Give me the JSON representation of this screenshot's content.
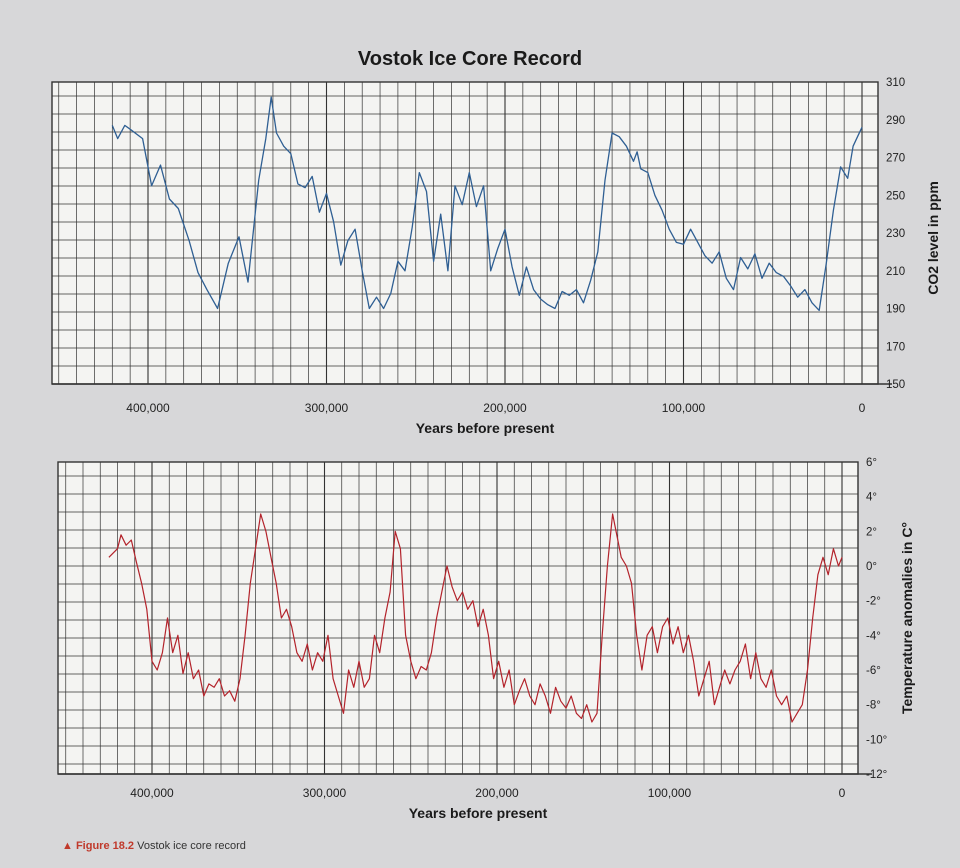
{
  "title": "Vostok Ice Core Record",
  "caption": {
    "figure": "Figure 18.2",
    "text": "Vostok ice core record"
  },
  "colors": {
    "co2": "#2f5f93",
    "temperature": "#b3232b",
    "grid": "#333333",
    "panel": "#f4f4f2"
  },
  "chart_data": [
    {
      "type": "line",
      "series": [
        {
          "name": "",
          "x": [
            420000,
            417000,
            413000,
            410000,
            403000,
            398000,
            393000,
            388000,
            383000,
            377000,
            372000,
            367000,
            361000,
            355000,
            349000,
            344000,
            338000,
            334000,
            331000,
            328000,
            324000,
            320000,
            316000,
            312000,
            308000,
            304000,
            300000,
            296000,
            292000,
            288000,
            284000,
            280000,
            276000,
            272000,
            268000,
            264000,
            260000,
            256000,
            252000,
            248000,
            244000,
            240000,
            236000,
            232000,
            228000,
            224000,
            220000,
            216000,
            212000,
            208000,
            204000,
            200000,
            196000,
            192000,
            188000,
            184000,
            180000,
            176000,
            172000,
            168000,
            164000,
            160000,
            156000,
            152000,
            148000,
            144000,
            140000,
            136000,
            132000,
            128000,
            126000,
            124000,
            120000,
            116000,
            112000,
            108000,
            104000,
            100000,
            96000,
            92000,
            88000,
            84000,
            80000,
            76000,
            72000,
            68000,
            64000,
            60000,
            56000,
            52000,
            48000,
            44000,
            40000,
            36000,
            32000,
            28000,
            24000,
            20000,
            16000,
            12000,
            8000,
            5000,
            2000,
            0
          ],
          "values": [
            287,
            280,
            287,
            285,
            280,
            255,
            266,
            248,
            243,
            226,
            209,
            200,
            190,
            214,
            228,
            204,
            258,
            280,
            302,
            283,
            276,
            272,
            256,
            254,
            260,
            241,
            251,
            236,
            213,
            226,
            232,
            210,
            190,
            196,
            190,
            198,
            215,
            210,
            233,
            262,
            252,
            215,
            240,
            210,
            255,
            245,
            262,
            244,
            255,
            210,
            222,
            232,
            212,
            197,
            212,
            200,
            195,
            192,
            190,
            199,
            197,
            200,
            193,
            205,
            220,
            258,
            283,
            281,
            276,
            268,
            273,
            264,
            262,
            250,
            242,
            232,
            225,
            224,
            232,
            225,
            218,
            214,
            220,
            206,
            200,
            217,
            211,
            219,
            206,
            214,
            209,
            207,
            202,
            196,
            200,
            193,
            189,
            214,
            242,
            265,
            259,
            276,
            282,
            286
          ]
        }
      ],
      "xlabel": "Years before present",
      "ylabel": "CO2 level in ppm",
      "xlim": [
        420000,
        0
      ],
      "ylim": [
        150,
        310
      ],
      "x_ticks": [
        "400,000",
        "300,000",
        "200,000",
        "100,000",
        "0"
      ],
      "y_ticks": [
        "310",
        "290",
        "270",
        "250",
        "230",
        "210",
        "190",
        "170",
        "150"
      ],
      "grid": true
    },
    {
      "type": "line",
      "series": [
        {
          "name": "",
          "x": [
            425000,
            420000,
            418000,
            415000,
            412000,
            409000,
            406000,
            403000,
            400000,
            397000,
            394000,
            391000,
            388000,
            385000,
            382000,
            379000,
            376000,
            373000,
            370000,
            367000,
            364000,
            361000,
            358000,
            355000,
            352000,
            349000,
            346000,
            343000,
            340000,
            337000,
            334000,
            331000,
            328000,
            325000,
            322000,
            319000,
            316000,
            313000,
            310000,
            307000,
            304000,
            301000,
            298000,
            295000,
            292000,
            289000,
            286000,
            283000,
            280000,
            277000,
            274000,
            271000,
            268000,
            265000,
            262000,
            259000,
            256000,
            253000,
            250000,
            247000,
            244000,
            241000,
            238000,
            235000,
            232000,
            229000,
            226000,
            223000,
            220000,
            217000,
            214000,
            211000,
            208000,
            205000,
            202000,
            199000,
            196000,
            193000,
            190000,
            187000,
            184000,
            181000,
            178000,
            175000,
            172000,
            169000,
            166000,
            163000,
            160000,
            157000,
            154000,
            151000,
            148000,
            145000,
            142000,
            139000,
            136000,
            133000,
            130000,
            128000,
            125000,
            122000,
            119000,
            116000,
            113000,
            110000,
            107000,
            104000,
            101000,
            98000,
            95000,
            92000,
            89000,
            86000,
            83000,
            80000,
            77000,
            74000,
            71000,
            68000,
            65000,
            62000,
            59000,
            56000,
            53000,
            50000,
            47000,
            44000,
            41000,
            38000,
            35000,
            32000,
            29000,
            26000,
            23000,
            20000,
            17000,
            14000,
            11000,
            8000,
            5000,
            2000,
            0
          ],
          "values": [
            0.5,
            1.0,
            1.8,
            1.2,
            1.5,
            0.2,
            -1.0,
            -2.5,
            -5.5,
            -6.0,
            -5.0,
            -3.0,
            -5.0,
            -4.0,
            -6.2,
            -5.0,
            -6.5,
            -6.0,
            -7.5,
            -6.8,
            -7.0,
            -6.5,
            -7.5,
            -7.2,
            -7.8,
            -6.5,
            -4.0,
            -1.0,
            1.0,
            3.0,
            2.0,
            0.5,
            -1.0,
            -3.0,
            -2.5,
            -3.5,
            -5.0,
            -5.5,
            -4.5,
            -6.0,
            -5.0,
            -5.5,
            -4.0,
            -6.5,
            -7.5,
            -8.5,
            -6.0,
            -7.0,
            -5.5,
            -7.0,
            -6.5,
            -4.0,
            -5.0,
            -3.0,
            -1.5,
            2.0,
            1.0,
            -4.0,
            -5.5,
            -6.5,
            -5.8,
            -6.0,
            -5.0,
            -3.0,
            -1.5,
            0,
            -1.2,
            -2.0,
            -1.5,
            -2.5,
            -2.0,
            -3.5,
            -2.5,
            -4.0,
            -6.5,
            -5.5,
            -7.0,
            -6.0,
            -8.0,
            -7.2,
            -6.5,
            -7.5,
            -8.0,
            -6.8,
            -7.5,
            -8.5,
            -7.0,
            -7.8,
            -8.2,
            -7.5,
            -8.5,
            -8.8,
            -8.0,
            -9.0,
            -8.5,
            -4.0,
            0,
            3.0,
            1.5,
            0.5,
            0,
            -1.0,
            -4.0,
            -6.0,
            -4.0,
            -3.5,
            -5.0,
            -3.5,
            -3.0,
            -4.5,
            -3.5,
            -5.0,
            -4.0,
            -5.5,
            -7.5,
            -6.5,
            -5.5,
            -8.0,
            -7.0,
            -6.0,
            -6.8,
            -6.0,
            -5.5,
            -4.5,
            -6.5,
            -5.0,
            -6.5,
            -7.0,
            -6.0,
            -7.5,
            -8.0,
            -7.5,
            -9.0,
            -8.5,
            -8.0,
            -6.0,
            -3.0,
            -0.5,
            0.5,
            -0.5,
            1.0,
            0,
            0.5
          ]
        }
      ],
      "xlabel": "Years before present",
      "ylabel": "Temperature anomalies in C°",
      "xlim": [
        420000,
        0
      ],
      "ylim": [
        -12,
        6
      ],
      "x_ticks": [
        "400,000",
        "300,000",
        "200,000",
        "100,000",
        "0"
      ],
      "y_ticks": [
        "6°",
        "4°",
        "2°",
        "0°",
        "-2°",
        "-4°",
        "-6°",
        "-8°",
        "-10°",
        "-12°"
      ],
      "grid": true
    }
  ]
}
